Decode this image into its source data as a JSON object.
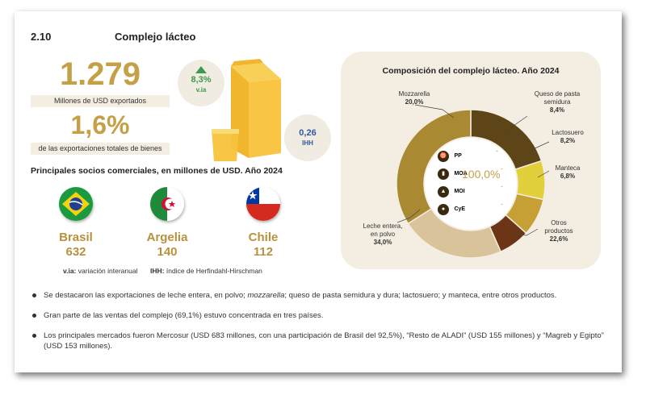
{
  "header": {
    "section_number": "2.10",
    "title": "Complejo lácteo"
  },
  "kpis": {
    "exports_value": "1.279",
    "exports_label": "Millones de USD exportados",
    "share_value": "1,6%",
    "share_label": "de las exportaciones totales de bienes",
    "variation_value": "8,3%",
    "variation_label": "v.ia",
    "ihh_value": "0,26",
    "ihh_label": "IHH"
  },
  "partners": {
    "title": "Principales socios comerciales, en millones de USD. Año 2024",
    "items": [
      {
        "country": "Brasil",
        "value": "632",
        "flag": "brazil-flag"
      },
      {
        "country": "Argelia",
        "value": "140",
        "flag": "algeria-flag"
      },
      {
        "country": "Chile",
        "value": "112",
        "flag": "chile-flag"
      }
    ],
    "notes": {
      "via_abbr": "v.ia:",
      "via_text": "variación interanual",
      "ihh_abbr": "IHH:",
      "ihh_text": "índice de Herfindahl-Hirschman"
    }
  },
  "legend": {
    "items": [
      {
        "code": "PP",
        "value": "-",
        "icon": "cow-icon"
      },
      {
        "code": "MOA",
        "value": "-",
        "icon": "bottle-icon"
      },
      {
        "code": "MOI",
        "value": "-",
        "icon": "factory-icon"
      },
      {
        "code": "CyE",
        "value": "-",
        "icon": "fuel-icon"
      }
    ],
    "total": "100,0%"
  },
  "chart_data": {
    "type": "pie",
    "title": "Composición del complejo lácteo. Año 2024",
    "slices": [
      {
        "name": "Mozzarella",
        "value": 20.0,
        "label": "20,0%",
        "color": "#5e4518"
      },
      {
        "name": "Queso de pasta semidura",
        "value": 8.4,
        "label": "8,4%",
        "color": "#e1d03b"
      },
      {
        "name": "Lactosuero",
        "value": 8.2,
        "label": "8,2%",
        "color": "#c7a035"
      },
      {
        "name": "Manteca",
        "value": 6.8,
        "label": "6,8%",
        "color": "#6b3516"
      },
      {
        "name": "Otros productos",
        "value": 22.6,
        "label": "22,6%",
        "color": "#d8c39a"
      },
      {
        "name": "Leche entera, en polvo",
        "value": 34.0,
        "label": "34,0%",
        "color": "#a98a33"
      }
    ]
  },
  "slice_labels": {
    "mozzarella": {
      "name": "Mozzarella",
      "value": "20,0%"
    },
    "queso_l1": "Queso de pasta",
    "queso_l2": "semidura",
    "queso_value": "8,4%",
    "lactosuero": {
      "name": "Lactosuero",
      "value": "8,2%"
    },
    "manteca": {
      "name": "Manteca",
      "value": "6,8%"
    },
    "otros_l1": "Otros",
    "otros_l2": "productos",
    "otros_value": "22,6%",
    "leche_l1": "Leche entera,",
    "leche_l2": "en polvo",
    "leche_value": "34,0%"
  },
  "bullets": {
    "b1_pre": "Se destacaron las exportaciones de leche entera, en polvo; ",
    "b1_em": "mozzarella",
    "b1_post": "; queso de pasta semidura y dura; lactosuero; y manteca, entre otros productos.",
    "b2": "Gran parte de las ventas del complejo (69,1%) estuvo concentrada en tres países.",
    "b3": "Los principales mercados fueron Mercosur (USD 683 millones, con una participación de Brasil del 92,5%), “Resto de ALADI” (USD 155 millones) y “Magreb y Egipto” (USD 153 millones)."
  }
}
